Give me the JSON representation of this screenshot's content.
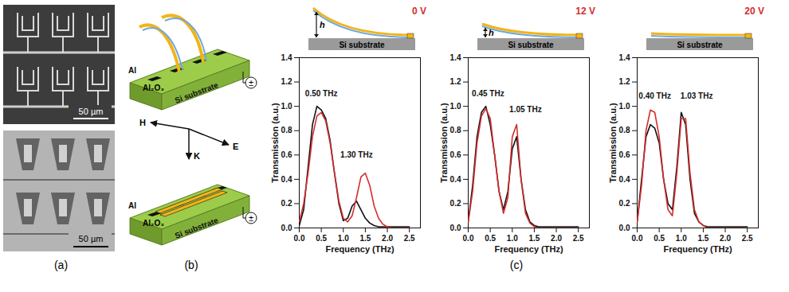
{
  "figure_labels": [
    "(a)",
    "(b)",
    "(c)"
  ],
  "panels": {
    "a": {
      "scale_bars": [
        "50 µm",
        "50 µm"
      ]
    },
    "b": {
      "top": {
        "labels": [
          "Al",
          "Al₂O₃",
          "Si substrate"
        ],
        "source": "±"
      },
      "bottom": {
        "labels": [
          "Al",
          "Al₂O₃",
          "Si substrate"
        ],
        "source": "±"
      },
      "field_labels": [
        "H",
        "K",
        "E"
      ]
    }
  },
  "chart_data": [
    {
      "type": "line",
      "xlabel": "Frequency (THz)",
      "ylabel": "Transmission (a.u.)",
      "xlim": [
        0,
        2.75
      ],
      "ylim": [
        0,
        1.4
      ],
      "xticks": [
        {
          "value": 0,
          "label": "0.0"
        },
        {
          "value": 0.5,
          "label": "0.5"
        },
        {
          "value": 1,
          "label": "1.0"
        },
        {
          "value": 1.5,
          "label": "1.5"
        },
        {
          "value": 2,
          "label": "2.0"
        },
        {
          "value": 2.5,
          "label": "2.5"
        }
      ],
      "yticks": [
        {
          "value": 0,
          "label": "0.0"
        },
        {
          "value": 0.2,
          "label": "0.2"
        },
        {
          "value": 0.4,
          "label": "0.4"
        },
        {
          "value": 0.6,
          "label": "0.6"
        },
        {
          "value": 0.8,
          "label": "0.8"
        },
        {
          "value": 1,
          "label": "1.0"
        },
        {
          "value": 1.2,
          "label": "1.2"
        },
        {
          "value": 1.4,
          "label": "1.4"
        }
      ],
      "x": [
        0,
        0.1,
        0.2,
        0.3,
        0.4,
        0.5,
        0.6,
        0.7,
        0.8,
        0.9,
        1.0,
        1.1,
        1.2,
        1.3,
        1.4,
        1.5,
        1.6,
        1.7,
        1.8,
        1.9,
        2.0,
        2.1,
        2.2,
        2.3,
        2.4,
        2.5
      ],
      "series": [
        {
          "color": "#111111",
          "values": [
            0.02,
            0.15,
            0.5,
            0.85,
            1.0,
            0.97,
            0.9,
            0.72,
            0.45,
            0.2,
            0.06,
            0.08,
            0.18,
            0.22,
            0.15,
            0.08,
            0.04,
            0.02,
            0.01,
            0.01,
            0.01,
            0.01,
            0.01,
            0.01,
            0.01,
            0.01
          ]
        },
        {
          "color": "#d42e2e",
          "values": [
            0.05,
            0.2,
            0.45,
            0.75,
            0.92,
            0.95,
            0.88,
            0.7,
            0.45,
            0.22,
            0.08,
            0.05,
            0.1,
            0.25,
            0.42,
            0.45,
            0.35,
            0.18,
            0.08,
            0.03,
            0.01,
            0,
            0,
            0,
            0,
            0
          ]
        }
      ],
      "annotations": [
        {
          "text": "0.50 THz",
          "x": 0.5,
          "y": 1.08
        },
        {
          "text": "1.30 THz",
          "x": 1.3,
          "y": 0.58
        }
      ],
      "inset": {
        "voltage": "0 V",
        "height": "h",
        "substrate": "Si substrate"
      }
    },
    {
      "type": "line",
      "xlabel": "Frequency (THz)",
      "ylabel": "Transmission (a.u.)",
      "xlim": [
        0,
        2.75
      ],
      "ylim": [
        0,
        1.4
      ],
      "xticks": [
        {
          "value": 0,
          "label": "0.0"
        },
        {
          "value": 0.5,
          "label": "0.5"
        },
        {
          "value": 1,
          "label": "1.0"
        },
        {
          "value": 1.5,
          "label": "1.5"
        },
        {
          "value": 2,
          "label": "2.0"
        },
        {
          "value": 2.5,
          "label": "2.5"
        }
      ],
      "yticks": [
        {
          "value": 0,
          "label": "0.0"
        },
        {
          "value": 0.2,
          "label": "0.2"
        },
        {
          "value": 0.4,
          "label": "0.4"
        },
        {
          "value": 0.6,
          "label": "0.6"
        },
        {
          "value": 0.8,
          "label": "0.8"
        },
        {
          "value": 1,
          "label": "1.0"
        },
        {
          "value": 1.2,
          "label": "1.2"
        },
        {
          "value": 1.4,
          "label": "1.4"
        }
      ],
      "x": [
        0,
        0.1,
        0.2,
        0.3,
        0.4,
        0.5,
        0.6,
        0.7,
        0.8,
        0.9,
        1.0,
        1.1,
        1.2,
        1.3,
        1.4,
        1.5,
        1.6,
        1.7,
        1.8,
        1.9,
        2.0,
        2.1,
        2.2,
        2.3,
        2.4,
        2.5
      ],
      "series": [
        {
          "color": "#111111",
          "values": [
            0.05,
            0.35,
            0.75,
            0.95,
            1.0,
            0.85,
            0.6,
            0.3,
            0.15,
            0.3,
            0.65,
            0.75,
            0.4,
            0.15,
            0.05,
            0.02,
            0.01,
            0.01,
            0.01,
            0.01,
            0.01,
            0.01,
            0.01,
            0.01,
            0.01,
            0.01
          ]
        },
        {
          "color": "#d42e2e",
          "values": [
            0.05,
            0.3,
            0.7,
            0.92,
            0.98,
            0.9,
            0.6,
            0.3,
            0.12,
            0.25,
            0.75,
            0.85,
            0.4,
            0.12,
            0.04,
            0.01,
            0,
            0,
            0,
            0,
            0,
            0,
            0,
            0,
            0,
            0
          ]
        }
      ],
      "annotations": [
        {
          "text": "0.45 THz",
          "x": 0.45,
          "y": 1.08
        },
        {
          "text": "1.05 THz",
          "x": 1.3,
          "y": 0.95
        }
      ],
      "inset": {
        "voltage": "12 V",
        "height": "h",
        "substrate": "Si substrate"
      }
    },
    {
      "type": "line",
      "xlabel": "Frequency (THz)",
      "ylabel": "Transmission (a.u.)",
      "xlim": [
        0,
        2.75
      ],
      "ylim": [
        0,
        1.4
      ],
      "xticks": [
        {
          "value": 0,
          "label": "0.0"
        },
        {
          "value": 0.5,
          "label": "0.5"
        },
        {
          "value": 1,
          "label": "1.0"
        },
        {
          "value": 1.5,
          "label": "1.5"
        },
        {
          "value": 2,
          "label": "2.0"
        },
        {
          "value": 2.5,
          "label": "2.5"
        }
      ],
      "yticks": [
        {
          "value": 0,
          "label": "0.0"
        },
        {
          "value": 0.2,
          "label": "0.2"
        },
        {
          "value": 0.4,
          "label": "0.4"
        },
        {
          "value": 0.6,
          "label": "0.6"
        },
        {
          "value": 0.8,
          "label": "0.8"
        },
        {
          "value": 1,
          "label": "1.0"
        },
        {
          "value": 1.2,
          "label": "1.2"
        },
        {
          "value": 1.4,
          "label": "1.4"
        }
      ],
      "x": [
        0,
        0.1,
        0.2,
        0.3,
        0.4,
        0.5,
        0.6,
        0.7,
        0.8,
        0.9,
        1.0,
        1.1,
        1.2,
        1.3,
        1.4,
        1.5,
        1.6,
        1.7,
        1.8,
        1.9,
        2.0,
        2.1,
        2.2,
        2.3,
        2.4,
        2.5
      ],
      "series": [
        {
          "color": "#111111",
          "values": [
            0.05,
            0.4,
            0.75,
            0.85,
            0.82,
            0.7,
            0.4,
            0.2,
            0.15,
            0.5,
            0.95,
            0.85,
            0.4,
            0.12,
            0.05,
            0.02,
            0.01,
            0.01,
            0.01,
            0.01,
            0.01,
            0.01,
            0.01,
            0.01,
            0.01,
            0.01
          ]
        },
        {
          "color": "#d42e2e",
          "values": [
            0.05,
            0.35,
            0.8,
            0.97,
            0.95,
            0.75,
            0.4,
            0.15,
            0.1,
            0.45,
            0.9,
            0.9,
            0.45,
            0.15,
            0.05,
            0.02,
            0,
            0,
            0,
            0,
            0,
            0,
            0,
            0,
            0,
            0
          ]
        }
      ],
      "annotations": [
        {
          "text": "0.40 THz",
          "x": 0.4,
          "y": 1.06
        },
        {
          "text": "1.03 THz",
          "x": 1.35,
          "y": 1.06
        }
      ],
      "inset": {
        "voltage": "20 V",
        "substrate": "Si substrate"
      }
    }
  ]
}
